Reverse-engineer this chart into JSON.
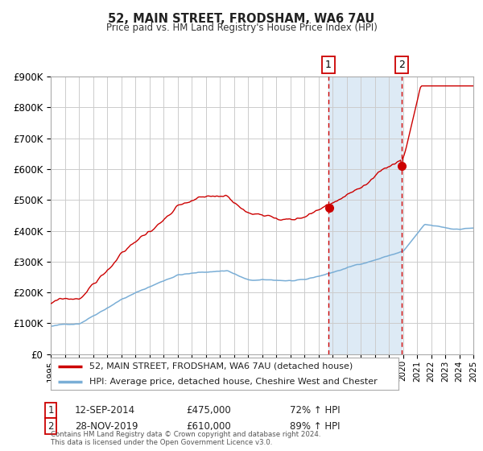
{
  "title": "52, MAIN STREET, FRODSHAM, WA6 7AU",
  "subtitle": "Price paid vs. HM Land Registry's House Price Index (HPI)",
  "legend_line1": "52, MAIN STREET, FRODSHAM, WA6 7AU (detached house)",
  "legend_line2": "HPI: Average price, detached house, Cheshire West and Chester",
  "annotation1_date": "12-SEP-2014",
  "annotation1_price": "£475,000",
  "annotation1_hpi": "72% ↑ HPI",
  "annotation2_date": "28-NOV-2019",
  "annotation2_price": "£610,000",
  "annotation2_hpi": "89% ↑ HPI",
  "footer": "Contains HM Land Registry data © Crown copyright and database right 2024.\nThis data is licensed under the Open Government Licence v3.0.",
  "red_color": "#cc0000",
  "blue_color": "#7aaed6",
  "bg_color": "#ffffff",
  "grid_color": "#cccccc",
  "annotation_bg": "#ddeaf5",
  "sale1_t": 2014.71,
  "sale1_value": 475000,
  "sale2_t": 2019.92,
  "sale2_value": 610000,
  "ylim_max": 900000,
  "ylim_min": 0,
  "xmin": 1995,
  "xmax": 2025
}
